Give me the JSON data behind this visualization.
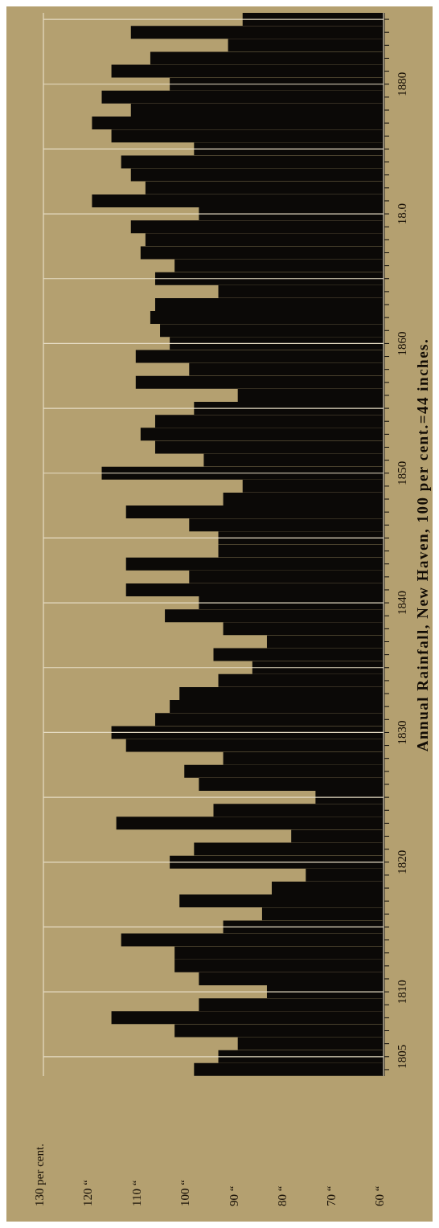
{
  "chart_data": {
    "type": "bar",
    "orientation": "horizontal",
    "title": "Annual Rainfall, New Haven, 100 per cent.=44 inches.",
    "categories": [
      null,
      null,
      null,
      null,
      null,
      "1880",
      null,
      null,
      null,
      null,
      null,
      null,
      null,
      null,
      null,
      "18.0",
      null,
      null,
      null,
      null,
      null,
      null,
      null,
      null,
      null,
      "1860",
      null,
      null,
      null,
      null,
      null,
      null,
      null,
      null,
      null,
      "1850",
      null,
      null,
      null,
      null,
      null,
      null,
      null,
      null,
      null,
      "1840",
      null,
      null,
      null,
      null,
      null,
      null,
      null,
      null,
      null,
      "1830",
      null,
      null,
      null,
      null,
      null,
      null,
      null,
      null,
      null,
      "1820",
      null,
      null,
      null,
      null,
      null,
      null,
      null,
      null,
      null,
      "1810",
      null,
      null,
      null,
      null,
      "1805",
      null
    ],
    "values": [
      89,
      112,
      92,
      108,
      116,
      104,
      118,
      112,
      120,
      116,
      99,
      114,
      112,
      109,
      120,
      98,
      112,
      109,
      110,
      103,
      107,
      94,
      107,
      108,
      106,
      104,
      111,
      100,
      111,
      90,
      99,
      107,
      110,
      107,
      97,
      118,
      89,
      93,
      113,
      100,
      94,
      94,
      113,
      100,
      113,
      98,
      105,
      93,
      84,
      95,
      87,
      94,
      102,
      104,
      107,
      116,
      113,
      93,
      101,
      98,
      74,
      95,
      115,
      79,
      99,
      104,
      76,
      83,
      102,
      85,
      93,
      114,
      103,
      103,
      98,
      84,
      98,
      116,
      103,
      90,
      94,
      99
    ],
    "color": "#0b0907",
    "xlim": [
      130,
      60
    ],
    "xticks": [
      {
        "value": 130,
        "label": "130 per cent."
      },
      {
        "value": 120,
        "label": "120 “"
      },
      {
        "value": 110,
        "label": "110 “"
      },
      {
        "value": 100,
        "label": "100 “"
      },
      {
        "value": 90,
        "label": "90 “"
      },
      {
        "value": 80,
        "label": "80 “"
      },
      {
        "value": 70,
        "label": "70 “"
      },
      {
        "value": 60,
        "label": "60 “"
      }
    ],
    "grid": true
  }
}
